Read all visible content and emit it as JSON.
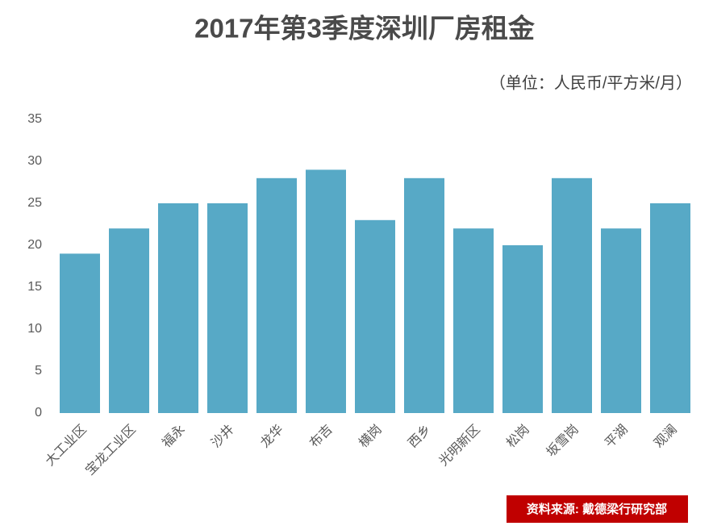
{
  "chart_data": {
    "type": "bar",
    "title": "2017年第3季度深圳厂房租金",
    "subtitle": "（单位：人民币/平方米/月）",
    "source": "资料来源: 戴德梁行研究部",
    "categories": [
      "大工业区",
      "宝龙工业区",
      "福永",
      "沙井",
      "龙华",
      "布吉",
      "横岗",
      "西乡",
      "光明新区",
      "松岗",
      "坂雪岗",
      "平湖",
      "观澜"
    ],
    "values": [
      19,
      22,
      25,
      25,
      28,
      29,
      23,
      28,
      22,
      20,
      28,
      22,
      25
    ],
    "color": "#57a9c6",
    "ylim": [
      0,
      35
    ],
    "yticks": [
      0,
      5,
      10,
      15,
      20,
      25,
      30,
      35
    ],
    "grid": false
  }
}
